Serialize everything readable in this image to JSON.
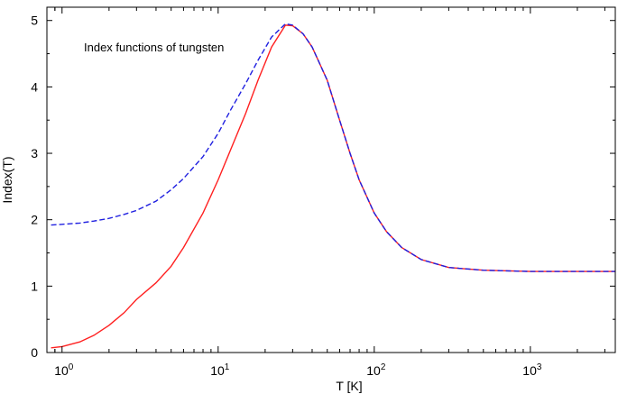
{
  "chart_data": {
    "type": "line",
    "title": "",
    "annotation": "Index functions of tungsten",
    "xlabel": "T [K]",
    "ylabel": "Index(T)",
    "xscale": "log",
    "xlim": [
      0.8,
      3500
    ],
    "ylim": [
      0,
      5.2
    ],
    "grid": false,
    "legend": "none",
    "x_ticks": [
      {
        "value": 1,
        "base": "10",
        "exp": "0"
      },
      {
        "value": 10,
        "base": "10",
        "exp": "1"
      },
      {
        "value": 100,
        "base": "10",
        "exp": "2"
      },
      {
        "value": 1000,
        "base": "10",
        "exp": "3"
      }
    ],
    "y_ticks": [
      "0",
      "1",
      "2",
      "3",
      "4",
      "5"
    ],
    "series": [
      {
        "color": "#ff2020",
        "style": "solid",
        "points": [
          [
            0.85,
            0.07
          ],
          [
            1.0,
            0.09
          ],
          [
            1.3,
            0.16
          ],
          [
            1.6,
            0.26
          ],
          [
            2.0,
            0.41
          ],
          [
            2.5,
            0.6
          ],
          [
            3.0,
            0.8
          ],
          [
            4.0,
            1.05
          ],
          [
            5.0,
            1.3
          ],
          [
            6.0,
            1.58
          ],
          [
            8.0,
            2.1
          ],
          [
            10.0,
            2.6
          ],
          [
            12.0,
            3.05
          ],
          [
            15.0,
            3.6
          ],
          [
            18.0,
            4.1
          ],
          [
            22.0,
            4.6
          ],
          [
            27.0,
            4.93
          ],
          [
            30.0,
            4.92
          ],
          [
            35.0,
            4.8
          ],
          [
            40.0,
            4.6
          ],
          [
            50.0,
            4.1
          ],
          [
            60.0,
            3.5
          ],
          [
            70.0,
            3.0
          ],
          [
            80.0,
            2.6
          ],
          [
            100.0,
            2.1
          ],
          [
            120.0,
            1.82
          ],
          [
            150.0,
            1.58
          ],
          [
            200.0,
            1.4
          ],
          [
            300.0,
            1.28
          ],
          [
            500.0,
            1.24
          ],
          [
            1000.0,
            1.22
          ],
          [
            2000.0,
            1.22
          ],
          [
            3500.0,
            1.22
          ]
        ]
      },
      {
        "color": "#2020e0",
        "style": "dashed",
        "points": [
          [
            0.85,
            1.92
          ],
          [
            1.0,
            1.93
          ],
          [
            1.3,
            1.95
          ],
          [
            1.6,
            1.98
          ],
          [
            2.0,
            2.02
          ],
          [
            2.5,
            2.08
          ],
          [
            3.0,
            2.14
          ],
          [
            4.0,
            2.28
          ],
          [
            5.0,
            2.45
          ],
          [
            6.0,
            2.62
          ],
          [
            8.0,
            2.95
          ],
          [
            10.0,
            3.3
          ],
          [
            12.0,
            3.65
          ],
          [
            15.0,
            4.05
          ],
          [
            18.0,
            4.4
          ],
          [
            22.0,
            4.75
          ],
          [
            27.0,
            4.95
          ],
          [
            30.0,
            4.93
          ],
          [
            35.0,
            4.8
          ],
          [
            40.0,
            4.6
          ],
          [
            50.0,
            4.1
          ],
          [
            60.0,
            3.5
          ],
          [
            70.0,
            3.0
          ],
          [
            80.0,
            2.6
          ],
          [
            100.0,
            2.1
          ],
          [
            120.0,
            1.82
          ],
          [
            150.0,
            1.58
          ],
          [
            200.0,
            1.4
          ],
          [
            300.0,
            1.28
          ],
          [
            500.0,
            1.24
          ],
          [
            1000.0,
            1.22
          ],
          [
            2000.0,
            1.22
          ],
          [
            3500.0,
            1.22
          ]
        ]
      }
    ]
  }
}
